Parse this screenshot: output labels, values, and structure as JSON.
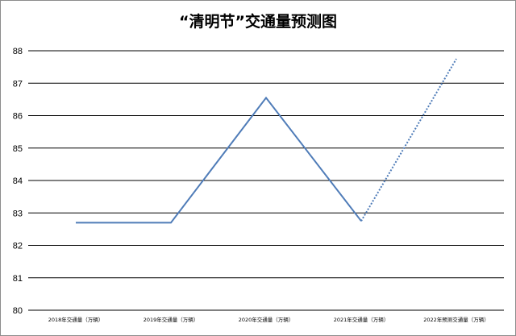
{
  "chart_data": {
    "type": "line",
    "title": "“清明节”交通量预测图",
    "categories": [
      "2018年交通量（万辆）",
      "2019年交通量（万辆）",
      "2020年交通量（万辆）",
      "2021年交通量（万辆）",
      "2022年预测交通量（万辆）"
    ],
    "values": [
      82.7,
      82.7,
      86.55,
      82.75,
      87.75
    ],
    "forecast_from_index": 3,
    "ylim": [
      80,
      88
    ],
    "yticks": [
      "80",
      "81",
      "82",
      "83",
      "84",
      "85",
      "86",
      "87",
      "88"
    ],
    "grid": true,
    "line_color": "#4f7cb8",
    "xlabel": "",
    "ylabel": ""
  }
}
